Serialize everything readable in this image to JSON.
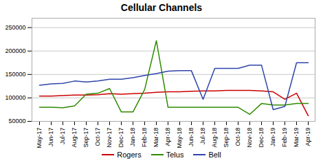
{
  "chart_data": {
    "type": "line",
    "title": "Cellular Channels",
    "categories": [
      "May-17",
      "Jun-17",
      "Jul-17",
      "Aug-17",
      "Sep-17",
      "Oct-17",
      "Nov-17",
      "Dec-17",
      "Jan-18",
      "Feb-18",
      "Mar-18",
      "Apr-18",
      "May-18",
      "Jun-18",
      "Jul-18",
      "Aug-18",
      "Sep-18",
      "Oct-18",
      "Nov-18",
      "Dec-18",
      "Jan-19",
      "Feb-19",
      "Mar-19",
      "Apr-19"
    ],
    "series": [
      {
        "name": "Rogers",
        "color": "#cc0000",
        "values": [
          104000,
          104000,
          105000,
          106000,
          106000,
          107000,
          109000,
          108000,
          109000,
          110000,
          112000,
          113000,
          113000,
          114000,
          115000,
          115000,
          116000,
          116000,
          116000,
          115000,
          113000,
          97000,
          110000,
          62000
        ]
      },
      {
        "name": "Telus",
        "color": "#2e8b00",
        "values": [
          80000,
          80000,
          79000,
          83000,
          108000,
          110000,
          120000,
          70000,
          70000,
          118000,
          222000,
          80000,
          80000,
          80000,
          80000,
          80000,
          80000,
          80000,
          65000,
          88000,
          85000,
          85000,
          88000,
          88000
        ]
      },
      {
        "name": "Bell",
        "color": "#2e44aa",
        "values": [
          127000,
          130000,
          131000,
          136000,
          134000,
          136000,
          140000,
          140000,
          143000,
          148000,
          152000,
          157000,
          158000,
          158000,
          97000,
          163000,
          163000,
          163000,
          170000,
          170000,
          75000,
          82000,
          175000,
          175000
        ]
      }
    ],
    "ylim": [
      50000,
      270000
    ],
    "yticks": [
      50000,
      100000,
      150000,
      200000,
      250000
    ],
    "grid": true,
    "legend": "bottom"
  }
}
